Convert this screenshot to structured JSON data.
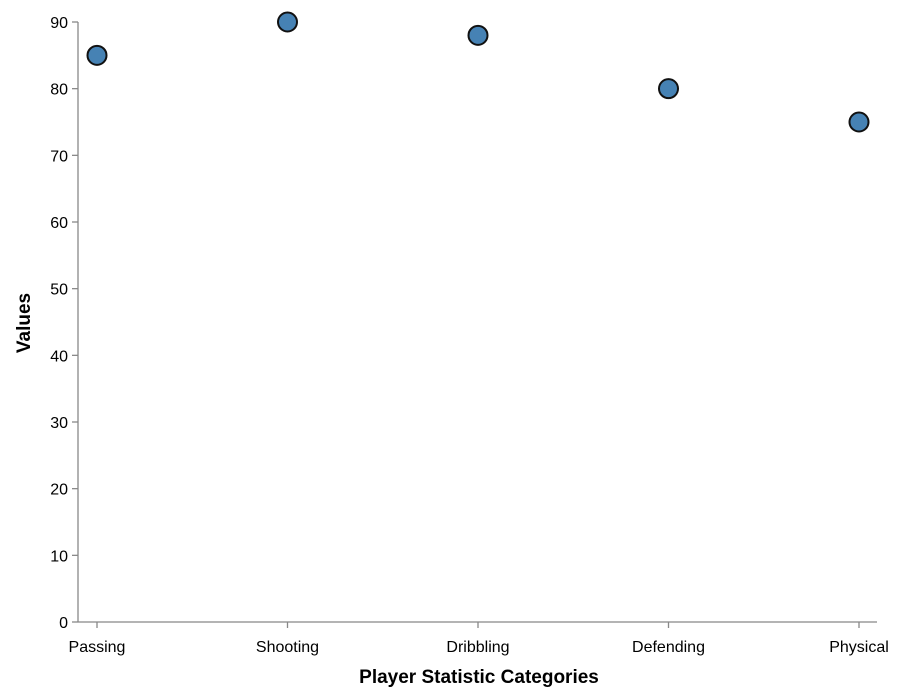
{
  "chart_data": {
    "type": "scatter",
    "categories": [
      "Passing",
      "Shooting",
      "Dribbling",
      "Defending",
      "Physical"
    ],
    "values": [
      85,
      90,
      88,
      80,
      75
    ],
    "xlabel": "Player Statistic Categories",
    "ylabel": "Values",
    "ylim": [
      0,
      90
    ],
    "yticks": [
      0,
      10,
      20,
      30,
      40,
      50,
      60,
      70,
      80,
      90
    ],
    "grid": false,
    "legend": "none",
    "point_color": "#4682b4",
    "point_stroke": "#111111",
    "axis_color": "#888888"
  }
}
